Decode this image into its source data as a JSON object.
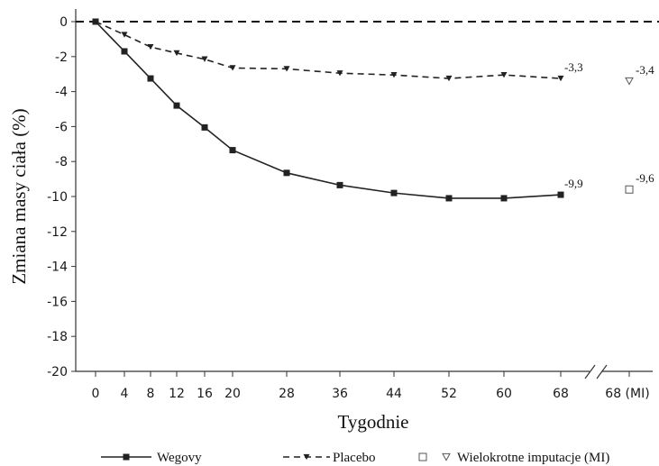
{
  "chart_data": {
    "type": "line",
    "xlabel": "Tygodnie",
    "ylabel": "Zmiana masy ciała (%)",
    "ylim": [
      -20,
      0
    ],
    "yticks": [
      "0",
      "-2",
      "-4",
      "-6",
      "-8",
      "-10",
      "-12",
      "-14",
      "-16",
      "-18",
      "-20"
    ],
    "x": [
      0,
      4,
      8,
      12,
      16,
      20,
      28,
      36,
      44,
      52,
      60,
      68
    ],
    "xtick_labels": [
      "0",
      "4",
      "8",
      "12",
      "16",
      "20",
      "28",
      "36",
      "44",
      "52",
      "60",
      "68"
    ],
    "mi_tick_label": "68 (MI)",
    "reference_line": 0,
    "series": [
      {
        "name": "Wegovy",
        "color": "#222222",
        "line": "solid",
        "marker": "square",
        "values": [
          0,
          -1.7,
          -3.25,
          -4.8,
          -6.05,
          -7.35,
          -8.65,
          -9.35,
          -9.8,
          -10.1,
          -10.1,
          -9.9
        ],
        "end_label": "-9,9",
        "mi_value": -9.6,
        "mi_label": "-9,6"
      },
      {
        "name": "Placebo",
        "color": "#222222",
        "line": "dashed",
        "marker": "triangle-down",
        "values": [
          0,
          -0.75,
          -1.45,
          -1.8,
          -2.15,
          -2.65,
          -2.7,
          -2.95,
          -3.05,
          -3.25,
          -3.05,
          -3.25
        ],
        "end_label": "-3,3",
        "mi_value": -3.4,
        "mi_label": "-3,4"
      }
    ],
    "legend": {
      "placement": "bottom",
      "mi_label": "Wielokrotne imputacje (MI)"
    }
  }
}
